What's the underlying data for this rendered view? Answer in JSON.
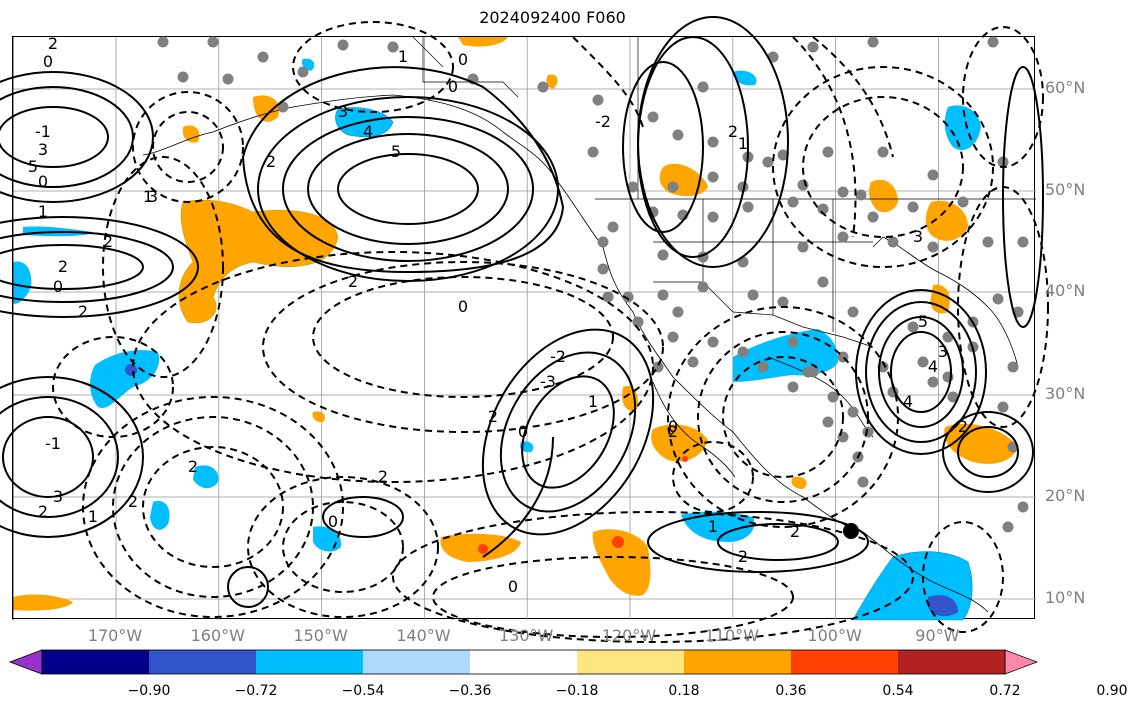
{
  "title": "2024092400 F060",
  "lat_labels": [
    {
      "text": "60°N",
      "lat": 60
    },
    {
      "text": "50°N",
      "lat": 50
    },
    {
      "text": "40°N",
      "lat": 40
    },
    {
      "text": "30°N",
      "lat": 30
    },
    {
      "text": "20°N",
      "lat": 20
    },
    {
      "text": "10°N",
      "lat": 10
    }
  ],
  "lon_labels": [
    {
      "text": "170°W",
      "lon": -170
    },
    {
      "text": "160°W",
      "lon": -160
    },
    {
      "text": "150°W",
      "lon": -150
    },
    {
      "text": "140°W",
      "lon": -140
    },
    {
      "text": "130°W",
      "lon": -130
    },
    {
      "text": "120°W",
      "lon": -120
    },
    {
      "text": "110°W",
      "lon": -110
    },
    {
      "text": "100°W",
      "lon": -100
    },
    {
      "text": "90°W",
      "lon": -90
    }
  ],
  "colorbar": {
    "colors": [
      "#9932cc",
      "#00008b",
      "#3355cc",
      "#00bfff",
      "#add8ff",
      "#ffffff",
      "#ffe680",
      "#ffa500",
      "#ff4000",
      "#b22222",
      "#ff88aa"
    ],
    "tick_labels": [
      "−0.90",
      "−0.72",
      "−0.54",
      "−0.36",
      "−0.18",
      "0.18",
      "0.36",
      "0.54",
      "0.72",
      "0.90"
    ]
  },
  "contour_labels": [
    "2",
    "0",
    "1",
    "0",
    "3",
    "4",
    "5",
    "2",
    "-1",
    "3",
    "5",
    "0",
    "1",
    "2",
    "1",
    "2",
    "0",
    "2",
    "2",
    "0",
    "-2",
    "-3",
    "1",
    "2",
    "0",
    "2",
    "2",
    "-1",
    "3",
    "2",
    "1",
    "2",
    "0",
    "0",
    "2",
    "2",
    "1",
    "2",
    "0",
    "4",
    "5",
    "3",
    "4",
    "2",
    "3",
    "2",
    "1",
    "-2",
    "0",
    "3"
  ]
}
